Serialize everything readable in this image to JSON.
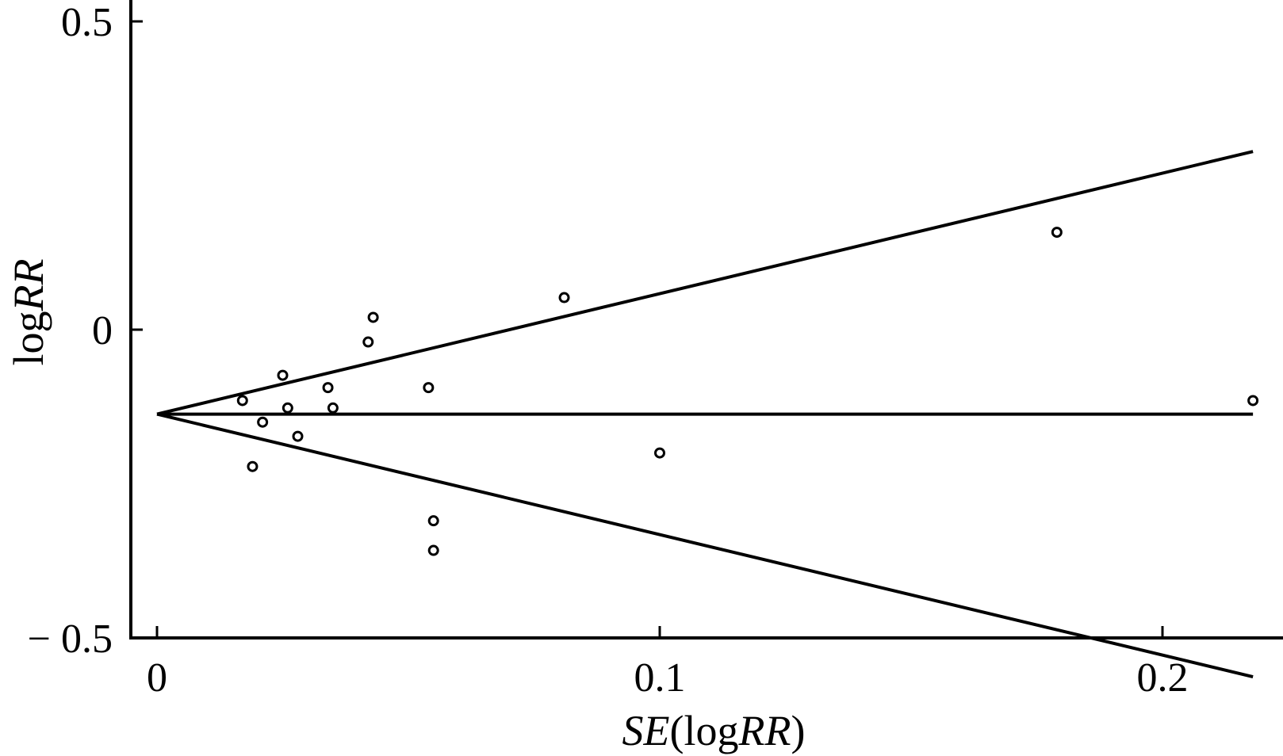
{
  "chart_data": {
    "type": "scatter",
    "xlabel": {
      "parts": [
        {
          "text": "SE",
          "italic": true
        },
        {
          "text": "(log",
          "italic": false
        },
        {
          "text": "RR",
          "italic": true
        },
        {
          "text": ")",
          "italic": false
        }
      ]
    },
    "ylabel": {
      "parts": [
        {
          "text": "log",
          "italic": false
        },
        {
          "text": "RR",
          "italic": true
        }
      ]
    },
    "xlim": [
      0,
      0.219
    ],
    "ylim": [
      -0.5,
      0.5
    ],
    "x_ticks": [
      {
        "value": 0,
        "label": "0"
      },
      {
        "value": 0.1,
        "label": "0.1"
      },
      {
        "value": 0.2,
        "label": "0.2"
      }
    ],
    "y_ticks": [
      {
        "value": 0.5,
        "label": "0.5"
      },
      {
        "value": 0,
        "label": "0"
      },
      {
        "value": -0.5,
        "label": "− 0.5"
      }
    ],
    "grid": false,
    "pooled_estimate": -0.137,
    "funnel_limit_at_xmax": {
      "x": 0.218,
      "upper": 0.289,
      "lower": -0.563
    },
    "points": [
      {
        "x": 0.017,
        "y": -0.115
      },
      {
        "x": 0.019,
        "y": -0.222
      },
      {
        "x": 0.021,
        "y": -0.15
      },
      {
        "x": 0.025,
        "y": -0.074
      },
      {
        "x": 0.026,
        "y": -0.127
      },
      {
        "x": 0.028,
        "y": -0.173
      },
      {
        "x": 0.034,
        "y": -0.094
      },
      {
        "x": 0.035,
        "y": -0.127
      },
      {
        "x": 0.042,
        "y": -0.02
      },
      {
        "x": 0.043,
        "y": 0.02
      },
      {
        "x": 0.054,
        "y": -0.094
      },
      {
        "x": 0.055,
        "y": -0.31
      },
      {
        "x": 0.055,
        "y": -0.358
      },
      {
        "x": 0.081,
        "y": 0.052
      },
      {
        "x": 0.1,
        "y": -0.2
      },
      {
        "x": 0.179,
        "y": 0.158
      },
      {
        "x": 0.218,
        "y": -0.115
      }
    ]
  }
}
